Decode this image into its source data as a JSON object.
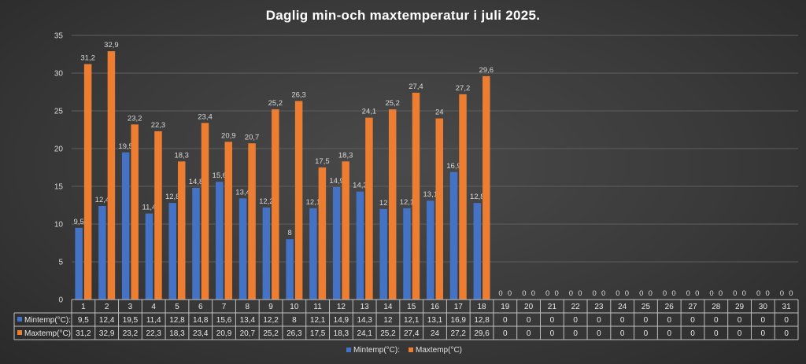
{
  "chart_data": {
    "type": "bar",
    "title": "Daglig min-och maxtemperatur i juli 2025.",
    "xlabel": "",
    "ylabel": "",
    "ylim": [
      0,
      35
    ],
    "yticks": [
      0,
      5,
      10,
      15,
      20,
      25,
      30,
      35
    ],
    "grid": true,
    "legend_position": "bottom",
    "categories": [
      "1",
      "2",
      "3",
      "4",
      "5",
      "6",
      "7",
      "8",
      "9",
      "10",
      "11",
      "12",
      "13",
      "14",
      "15",
      "16",
      "17",
      "18",
      "19",
      "20",
      "21",
      "22",
      "23",
      "24",
      "25",
      "26",
      "27",
      "28",
      "29",
      "30",
      "31"
    ],
    "series": [
      {
        "name": "Mintemp(°C):",
        "color": "#4472c4",
        "values": [
          9.5,
          12.4,
          19.5,
          11.4,
          12.8,
          14.8,
          15.6,
          13.4,
          12.2,
          8,
          12.1,
          14.9,
          14.3,
          12,
          12.1,
          13.1,
          16.9,
          12.8,
          0,
          0,
          0,
          0,
          0,
          0,
          0,
          0,
          0,
          0,
          0,
          0,
          0
        ],
        "labels": [
          "9,5",
          "12,4",
          "19,5",
          "11,4",
          "12,8",
          "14,8",
          "15,6",
          "13,4",
          "12,2",
          "8",
          "12,1",
          "14,9",
          "14,3",
          "12",
          "12,1",
          "13,1",
          "16,9",
          "12,8",
          "0",
          "0",
          "0",
          "0",
          "0",
          "0",
          "0",
          "0",
          "0",
          "0",
          "0",
          "0",
          "0"
        ]
      },
      {
        "name": "Maxtemp(°C)",
        "color": "#ed7d31",
        "values": [
          31.2,
          32.9,
          23.2,
          22.3,
          18.3,
          23.4,
          20.9,
          20.7,
          25.2,
          26.3,
          17.5,
          18.3,
          24.1,
          25.2,
          27.4,
          24,
          27.2,
          29.6,
          0,
          0,
          0,
          0,
          0,
          0,
          0,
          0,
          0,
          0,
          0,
          0,
          0
        ],
        "labels": [
          "31,2",
          "32,9",
          "23,2",
          "22,3",
          "18,3",
          "23,4",
          "20,9",
          "20,7",
          "25,2",
          "26,3",
          "17,5",
          "18,3",
          "24,1",
          "25,2",
          "27,4",
          "24",
          "27,2",
          "29,6",
          "0",
          "0",
          "0",
          "0",
          "0",
          "0",
          "0",
          "0",
          "0",
          "0",
          "0",
          "0",
          "0"
        ]
      }
    ]
  }
}
